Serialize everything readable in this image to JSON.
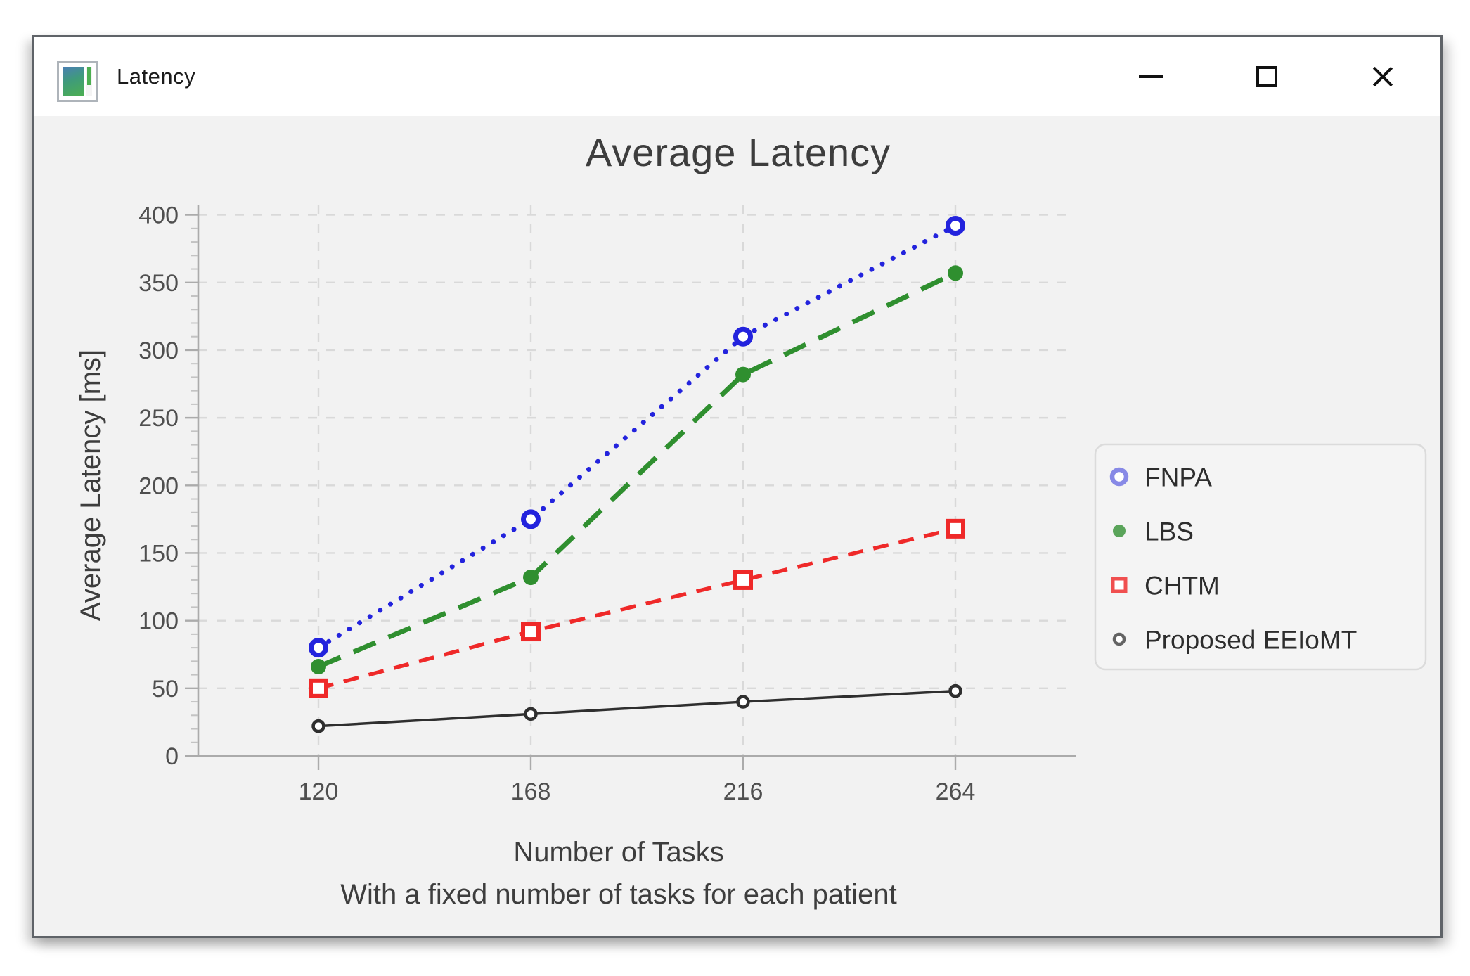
{
  "window": {
    "title": "Latency",
    "icons": [
      "app-icon",
      "minimize-icon",
      "maximize-icon",
      "close-icon"
    ]
  },
  "chart_data": {
    "type": "line",
    "title": "Average Latency",
    "xlabel": "Number of Tasks",
    "xlabel_subtitle": "With a fixed number of tasks for each patient",
    "ylabel": "Average Latency [ms]",
    "x": [
      120,
      168,
      216,
      264
    ],
    "x_tick_labels": [
      "120",
      "168",
      "216",
      "264"
    ],
    "y_ticks": [
      0,
      50,
      100,
      150,
      200,
      250,
      300,
      350,
      400
    ],
    "y_minor_step": 10,
    "ylim": [
      0,
      400
    ],
    "grid": "dashed",
    "legend_position": "right",
    "series": [
      {
        "name": "FNPA",
        "values": [
          80,
          175,
          310,
          392
        ],
        "color": "#2323dd",
        "legend_color": "#8789e6",
        "line": "dotted",
        "marker": "open-circle"
      },
      {
        "name": "LBS",
        "values": [
          66,
          132,
          282,
          357
        ],
        "color": "#2f8f2f",
        "legend_color": "#5aa45a",
        "line": "dashed-long",
        "marker": "filled-circle"
      },
      {
        "name": "CHTM",
        "values": [
          50,
          92,
          130,
          168
        ],
        "color": "#ef2929",
        "legend_color": "#f04f4f",
        "line": "dashed",
        "marker": "open-square"
      },
      {
        "name": "Proposed EEIoMT",
        "values": [
          22,
          31,
          40,
          48
        ],
        "color": "#2f2f2f",
        "legend_color": "#636363",
        "line": "solid",
        "marker": "open-circle-small"
      }
    ]
  },
  "colors": {
    "window_background": "#f2f2f2",
    "titlebar_background": "#ffffff",
    "grid_line": "#d9d9d9",
    "axis_line": "#ababab",
    "tick_label": "#4f4f4f",
    "axis_label": "#3d3d3d",
    "title_text": "#3d3d3d",
    "legend_fill": "#f4f4f4",
    "legend_border": "#dbdbdb",
    "legend_text": "#2d2d2d"
  }
}
